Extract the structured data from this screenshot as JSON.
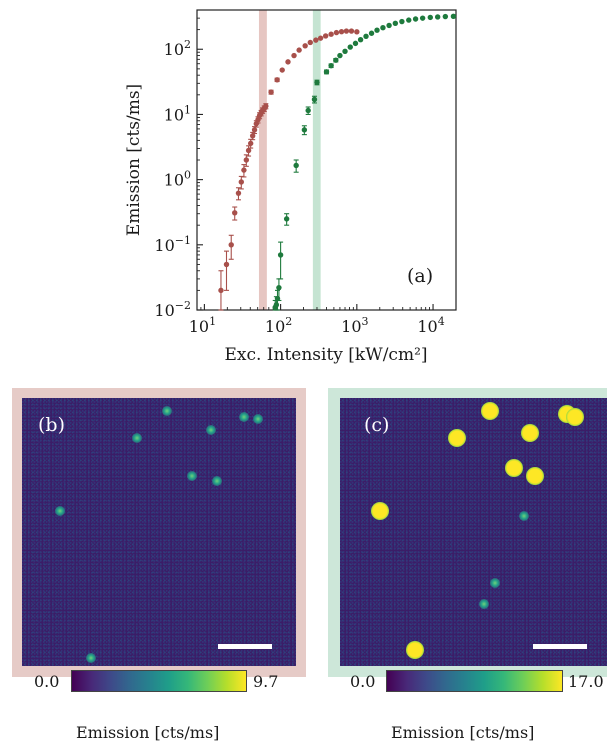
{
  "chart_data": [
    {
      "type": "scatter",
      "panel_label": "(a)",
      "xlabel": "Exc. Intensity [kW/cm²]",
      "ylabel": "Emission [cts/ms]",
      "xscale": "log",
      "yscale": "log",
      "xlim": [
        8,
        20000
      ],
      "ylim": [
        0.01,
        400
      ],
      "x_ticks": [
        {
          "value": 10,
          "base": "10",
          "exp": "1"
        },
        {
          "value": 100,
          "base": "10",
          "exp": "2"
        },
        {
          "value": 1000,
          "base": "10",
          "exp": "3"
        },
        {
          "value": 10000,
          "base": "10",
          "exp": "4"
        }
      ],
      "y_ticks": [
        {
          "value": 0.01,
          "base": "10",
          "exp": "−2"
        },
        {
          "value": 0.1,
          "base": "10",
          "exp": "−1"
        },
        {
          "value": 1,
          "base": "10",
          "exp": "0"
        },
        {
          "value": 10,
          "base": "10",
          "exp": "1"
        },
        {
          "value": 100,
          "base": "10",
          "exp": "2"
        }
      ],
      "shaded_bands": [
        {
          "x_range": [
            52,
            66
          ],
          "color": "#e6c6c2"
        },
        {
          "x_range": [
            265,
            335
          ],
          "color": "#c5e4d2"
        }
      ],
      "series": [
        {
          "color": "#a8504b",
          "x": [
            16.5,
            19.5,
            22.5,
            25,
            28,
            30.5,
            33,
            35.5,
            38,
            40.5,
            43,
            45.5,
            48,
            50.5,
            53,
            55.5,
            58,
            61,
            64,
            75,
            90,
            105,
            125,
            150,
            175,
            210,
            245,
            290,
            335,
            390,
            460,
            540,
            630,
            730,
            850,
            1000
          ],
          "y": [
            0.02,
            0.05,
            0.1,
            0.31,
            0.62,
            0.92,
            1.4,
            2.0,
            2.8,
            3.6,
            4.7,
            5.8,
            7.2,
            8.3,
            9.6,
            10.5,
            11.5,
            12.3,
            13.4,
            22,
            34,
            48,
            64,
            80,
            97,
            113,
            127,
            138,
            148,
            160,
            170,
            180,
            186,
            190,
            190,
            185
          ],
          "err": [
            0.02,
            0.03,
            0.04,
            0.07,
            0.13,
            0.2,
            0.3,
            0.4,
            0.5,
            0.55,
            0.6,
            0.7,
            0.8,
            0.9,
            1.0,
            1.0,
            1.1,
            1.2,
            1.2,
            1.5,
            2,
            2.5,
            3,
            3.5,
            4,
            4,
            4,
            4.5,
            4.5,
            5,
            5,
            5,
            5,
            5,
            5,
            5
          ]
        },
        {
          "color": "#1e7a3d",
          "x": [
            85,
            88,
            91,
            95,
            100,
            120,
            160,
            205,
            230,
            278,
            300,
            400,
            460,
            530,
            600,
            700,
            820,
            960,
            1120,
            1320,
            1560,
            1840,
            2200,
            2650,
            3200,
            3900,
            4800,
            5900,
            7300,
            9200,
            11500,
            14500,
            18500
          ],
          "y": [
            0.011,
            0.012,
            0.015,
            0.022,
            0.07,
            0.25,
            1.65,
            5.8,
            11.5,
            17,
            31,
            45,
            56,
            68,
            80,
            93,
            108,
            123,
            140,
            158,
            176,
            196,
            214,
            232,
            250,
            266,
            280,
            291,
            300,
            308,
            313,
            317,
            320
          ],
          "err": [
            0.003,
            0.004,
            0.005,
            0.008,
            0.04,
            0.05,
            0.35,
            0.9,
            1.5,
            2,
            2.5,
            3,
            3.5,
            4,
            4,
            4,
            4.5,
            4.5,
            5,
            5,
            5,
            5,
            5,
            5,
            5,
            5,
            5,
            5,
            5,
            5,
            5,
            5,
            5
          ]
        }
      ]
    },
    {
      "type": "heatmap",
      "panel_label": "(b)",
      "colorbar_min": "0.0",
      "colorbar_max": "9.7",
      "colorbar_label": "Emission [cts/ms]",
      "frame_color": "#e6cbc7",
      "spots": [
        [
          0.53,
          0.05,
          "dim"
        ],
        [
          0.81,
          0.07,
          "dim"
        ],
        [
          0.86,
          0.08,
          "dim"
        ],
        [
          0.69,
          0.12,
          "dim"
        ],
        [
          0.42,
          0.15,
          "dim"
        ],
        [
          0.62,
          0.29,
          "dim"
        ],
        [
          0.71,
          0.31,
          "dim"
        ],
        [
          0.14,
          0.42,
          "dim"
        ],
        [
          0.25,
          0.97,
          "dim"
        ]
      ]
    },
    {
      "type": "heatmap",
      "panel_label": "(c)",
      "colorbar_min": "0.0",
      "colorbar_max": "17.0",
      "colorbar_label": "Emission [cts/ms]",
      "frame_color": "#cde7d9",
      "spots": [
        [
          0.56,
          0.05,
          "bright"
        ],
        [
          0.85,
          0.06,
          "bright"
        ],
        [
          0.88,
          0.07,
          "bright"
        ],
        [
          0.71,
          0.13,
          "bright"
        ],
        [
          0.44,
          0.15,
          "bright"
        ],
        [
          0.65,
          0.26,
          "bright"
        ],
        [
          0.73,
          0.29,
          "bright"
        ],
        [
          0.15,
          0.42,
          "bright"
        ],
        [
          0.69,
          0.44,
          "dim"
        ],
        [
          0.58,
          0.69,
          "dim"
        ],
        [
          0.54,
          0.77,
          "dim"
        ],
        [
          0.28,
          0.94,
          "bright"
        ]
      ]
    }
  ]
}
